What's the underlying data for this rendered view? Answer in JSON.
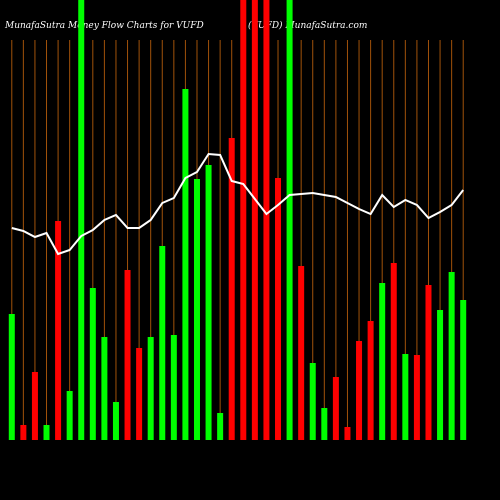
{
  "chart_data": {
    "type": "bar",
    "title": "MunafaSutra  Money Flow  Charts for VUFD",
    "site": "(VUFD) MunafaSutra.com",
    "categories": [
      null,
      null,
      null,
      null,
      null,
      null,
      null,
      null,
      null,
      null,
      null,
      null,
      null,
      null,
      null,
      null,
      null,
      null,
      null,
      null,
      null,
      null,
      null,
      null,
      null,
      null,
      null,
      null,
      null,
      null,
      null,
      null,
      null,
      null,
      null,
      null,
      null,
      null,
      null,
      null
    ],
    "values": [
      126,
      15,
      68,
      15,
      219,
      49,
      440,
      152,
      103,
      38,
      170,
      92,
      103,
      194,
      105,
      351,
      261,
      275,
      27,
      302,
      440,
      440,
      440,
      262,
      440,
      174,
      77,
      32,
      63,
      13,
      99,
      119,
      157,
      177,
      86,
      85,
      155,
      130,
      168,
      140
    ],
    "bar_colors": [
      "#00ff00",
      "#ff0000",
      "#ff0000",
      "#00ff00",
      "#ff0000",
      "#00ff00",
      "#00ff00",
      "#00ff00",
      "#00ff00",
      "#00ff00",
      "#ff0000",
      "#ff0000",
      "#00ff00",
      "#00ff00",
      "#00ff00",
      "#00ff00",
      "#00ff00",
      "#00ff00",
      "#00ff00",
      "#ff0000",
      "#ff0000",
      "#ff0000",
      "#ff0000",
      "#ff0000",
      "#00ff00",
      "#ff0000",
      "#00ff00",
      "#00ff00",
      "#ff0000",
      "#ff0000",
      "#ff0000",
      "#ff0000",
      "#00ff00",
      "#ff0000",
      "#00ff00",
      "#ff0000",
      "#ff0000",
      "#00ff00",
      "#00ff00",
      "#00ff00"
    ],
    "line_values": [
      212,
      209,
      203,
      207,
      186,
      190,
      204,
      210,
      220,
      225,
      212,
      212,
      220,
      237,
      242,
      262,
      268,
      286,
      285,
      259,
      256,
      241,
      226,
      235,
      245,
      246,
      247,
      245,
      243,
      237,
      231,
      226,
      245,
      233,
      240,
      235,
      222,
      228,
      235,
      250
    ],
    "line_color": "#ffffff",
    "grid_color": "#a0520a",
    "ylim": [
      0,
      440
    ]
  }
}
